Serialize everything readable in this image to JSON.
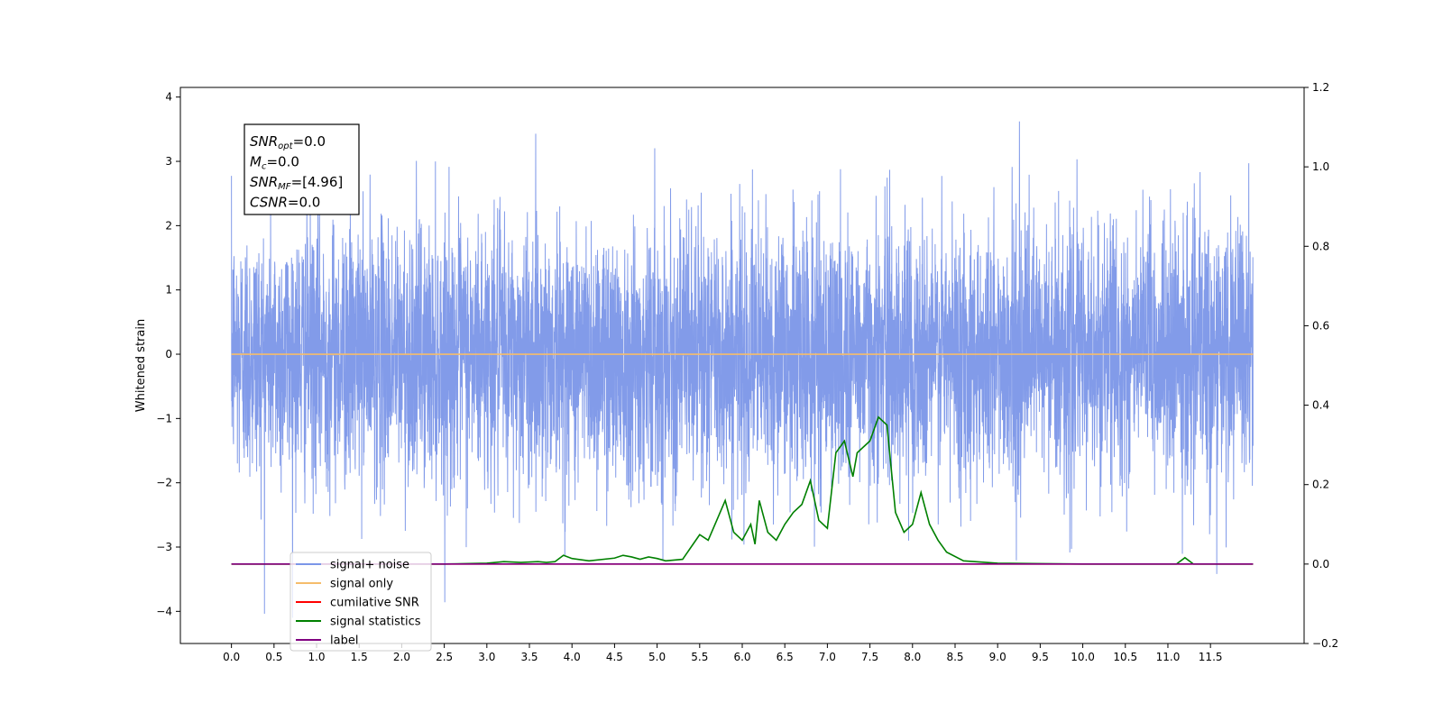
{
  "chart_data": {
    "type": "line",
    "title": "",
    "xlabel": "",
    "ylabel": "Whitened strain",
    "xlim": [
      -0.6,
      12.6
    ],
    "ylim": [
      -4.5,
      4.15
    ],
    "y2lim": [
      -0.2,
      1.2
    ],
    "x_ticks": [
      "0.0",
      "0.5",
      "1.0",
      "1.5",
      "2.0",
      "2.5",
      "3.0",
      "3.5",
      "4.0",
      "4.5",
      "5.0",
      "5.5",
      "6.0",
      "6.5",
      "7.0",
      "7.5",
      "8.0",
      "8.5",
      "9.0",
      "9.5",
      "10.0",
      "10.5",
      "11.0",
      "11.5"
    ],
    "y_ticks": [
      "4",
      "3",
      "2",
      "1",
      "0",
      "-1",
      "-2",
      "-3",
      "-4"
    ],
    "y2_ticks": [
      "1.2",
      "1.0",
      "0.8",
      "0.6",
      "0.4",
      "0.2",
      "0.0",
      "-0.2"
    ],
    "grid": false,
    "legend_placement": "lower-left",
    "annotation": {
      "lines": [
        {
          "main": "SNR",
          "sub": "opt",
          "rest": "=0.0"
        },
        {
          "main": "M",
          "sub": "c",
          "rest": "=0.0"
        },
        {
          "main": "SNR",
          "sub": "MF",
          "rest": "=[4.96]"
        },
        {
          "main": "CSNR",
          "sub": "",
          "rest": "=0.0"
        }
      ]
    },
    "series": [
      {
        "name": "signal+ noise",
        "color": "#7b96e8",
        "axis": "left",
        "kind": "noise",
        "x_range": [
          0.0,
          12.0
        ],
        "approx_std": 1.0,
        "approx_min": -4.1,
        "approx_max": 3.75
      },
      {
        "name": "signal only",
        "color": "#f5bd6b",
        "axis": "left",
        "x": [
          0.0,
          12.0
        ],
        "y": [
          0.0,
          0.0
        ]
      },
      {
        "name": "cumilative SNR",
        "color": "#ff0000",
        "axis": "right",
        "x": [
          0.0,
          12.0
        ],
        "y": [
          0.0,
          0.0
        ]
      },
      {
        "name": "signal statistics",
        "color": "#008000",
        "axis": "right",
        "x": [
          0.0,
          1.0,
          2.0,
          2.5,
          3.0,
          3.2,
          3.4,
          3.6,
          3.7,
          3.8,
          3.9,
          4.0,
          4.2,
          4.5,
          4.6,
          4.7,
          4.8,
          4.9,
          5.0,
          5.1,
          5.3,
          5.5,
          5.6,
          5.7,
          5.8,
          5.9,
          6.0,
          6.1,
          6.15,
          6.2,
          6.3,
          6.4,
          6.5,
          6.6,
          6.7,
          6.8,
          6.9,
          7.0,
          7.1,
          7.2,
          7.3,
          7.35,
          7.5,
          7.6,
          7.7,
          7.8,
          7.9,
          8.0,
          8.1,
          8.2,
          8.3,
          8.4,
          8.6,
          9.0,
          10.0,
          11.1,
          11.2,
          11.3,
          12.0
        ],
        "y": [
          0.0,
          0.0,
          0.0,
          0.0,
          0.002,
          0.006,
          0.004,
          0.006,
          0.004,
          0.006,
          0.022,
          0.014,
          0.008,
          0.015,
          0.022,
          0.018,
          0.012,
          0.018,
          0.014,
          0.008,
          0.012,
          0.074,
          0.06,
          0.11,
          0.16,
          0.08,
          0.06,
          0.1,
          0.05,
          0.16,
          0.08,
          0.06,
          0.1,
          0.13,
          0.15,
          0.21,
          0.11,
          0.09,
          0.28,
          0.31,
          0.22,
          0.28,
          0.31,
          0.37,
          0.35,
          0.13,
          0.08,
          0.1,
          0.18,
          0.1,
          0.06,
          0.03,
          0.008,
          0.002,
          0.0,
          0.0,
          0.016,
          0.0,
          0.0
        ]
      },
      {
        "name": "label",
        "color": "#800080",
        "axis": "right",
        "x": [
          0.0,
          12.0
        ],
        "y": [
          0.0,
          0.0
        ]
      }
    ]
  }
}
